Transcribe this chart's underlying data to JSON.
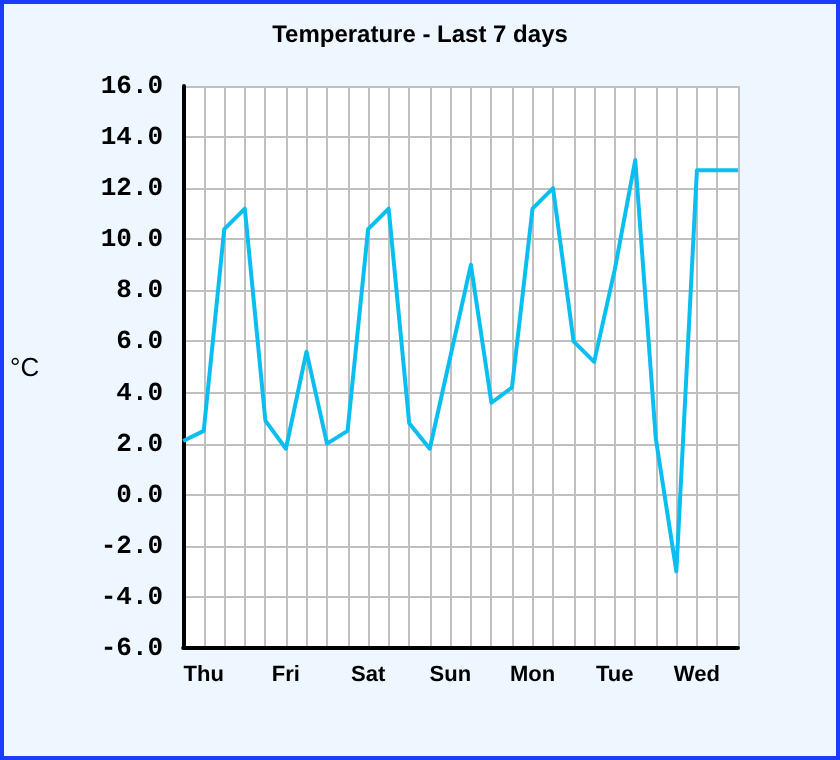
{
  "chart_data": {
    "type": "line",
    "title": "Temperature - Last 7 days",
    "ylabel": "°C",
    "categories": [
      null,
      "Thu",
      null,
      null,
      null,
      "Fri",
      null,
      null,
      null,
      "Sat",
      null,
      null,
      null,
      "Sun",
      null,
      null,
      null,
      "Mon",
      null,
      null,
      null,
      "Tue",
      null,
      null,
      null,
      "Wed",
      null,
      null
    ],
    "series": [
      {
        "color": "#0abff0",
        "values": [
          2.1,
          2.5,
          10.4,
          11.2,
          2.9,
          1.8,
          5.6,
          2.0,
          2.5,
          10.4,
          11.2,
          2.8,
          1.8,
          5.4,
          9.0,
          3.6,
          4.2,
          11.2,
          12.0,
          6.0,
          5.2,
          8.8,
          13.1,
          2.2,
          -3.0,
          12.7,
          12.7,
          12.7
        ]
      }
    ],
    "ylim": [
      -6,
      16
    ],
    "yticks": [
      {
        "value": -6,
        "label": "-6.0"
      },
      {
        "value": -4,
        "label": "-4.0"
      },
      {
        "value": -2,
        "label": "-2.0"
      },
      {
        "value": 0,
        "label": "0.0"
      },
      {
        "value": 2,
        "label": "2.0"
      },
      {
        "value": 4,
        "label": "4.0"
      },
      {
        "value": 6,
        "label": "6.0"
      },
      {
        "value": 8,
        "label": "8.0"
      },
      {
        "value": 10,
        "label": "10.0"
      },
      {
        "value": 12,
        "label": "12.0"
      },
      {
        "value": 14,
        "label": "14.0"
      },
      {
        "value": 16,
        "label": "16.0"
      }
    ],
    "grid": true,
    "marker": "none",
    "line_style": "solid"
  }
}
